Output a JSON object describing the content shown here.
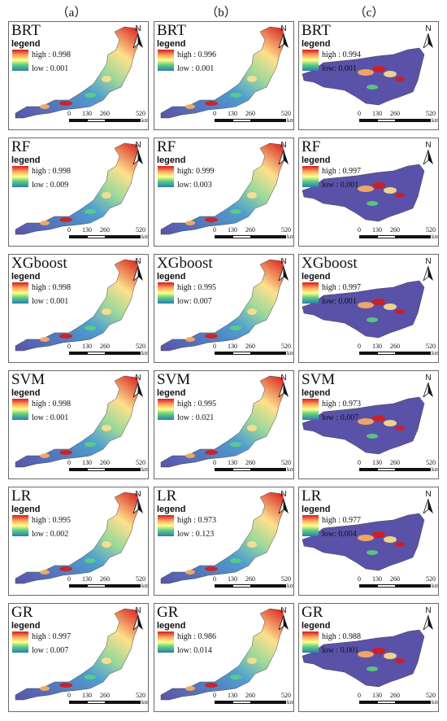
{
  "column_labels": [
    "（a）",
    "（b）",
    "（c）"
  ],
  "legend_title": "legend",
  "north_label": "N",
  "scale_labels": [
    "0",
    "130",
    "260",
    "520"
  ],
  "scale_unit": "km",
  "panels": [
    {
      "col": 0,
      "row": 0,
      "model": "BRT",
      "high": "high : 0.998",
      "low": "low : 0.001"
    },
    {
      "col": 1,
      "row": 0,
      "model": "BRT",
      "high": "high : 0.996",
      "low": "low : 0.001"
    },
    {
      "col": 2,
      "row": 0,
      "model": "BRT",
      "high": "high : 0.994",
      "low": "low: 0.001"
    },
    {
      "col": 0,
      "row": 1,
      "model": "RF",
      "high": "high : 0.998",
      "low": "low : 0.009"
    },
    {
      "col": 1,
      "row": 1,
      "model": "RF",
      "high": "high: 0.999",
      "low": "low: 0.003"
    },
    {
      "col": 2,
      "row": 1,
      "model": "RF",
      "high": "high : 0.997",
      "low": "low : 0.001"
    },
    {
      "col": 0,
      "row": 2,
      "model": "XGboost",
      "high": "high : 0.998",
      "low": "low : 0.001"
    },
    {
      "col": 1,
      "row": 2,
      "model": "XGboost",
      "high": "high : 0.995",
      "low": "low: 0.007"
    },
    {
      "col": 2,
      "row": 2,
      "model": "XGboost",
      "high": "high : 0.997",
      "low": "low: 0.001"
    },
    {
      "col": 0,
      "row": 3,
      "model": "SVM",
      "high": "high : 0.998",
      "low": "low : 0.001"
    },
    {
      "col": 1,
      "row": 3,
      "model": "SVM",
      "high": "high : 0.995",
      "low": "low : 0.021"
    },
    {
      "col": 2,
      "row": 3,
      "model": "SVM",
      "high": "high : 0.973",
      "low": "low : 0.007"
    },
    {
      "col": 0,
      "row": 4,
      "model": "LR",
      "high": "high : 0.995",
      "low": "low : 0.002"
    },
    {
      "col": 1,
      "row": 4,
      "model": "LR",
      "high": "high : 0.973",
      "low": "low : 0.123"
    },
    {
      "col": 2,
      "row": 4,
      "model": "LR",
      "high": "high : 0.977",
      "low": "low: 0.004"
    },
    {
      "col": 0,
      "row": 5,
      "model": "GR",
      "high": "high : 0.997",
      "low": "low : 0.007"
    },
    {
      "col": 1,
      "row": 5,
      "model": "GR",
      "high": "high : 0.986",
      "low": "low: 0.014"
    },
    {
      "col": 2,
      "row": 5,
      "model": "GR",
      "high": "high : 0.988",
      "low": "low : 0.001"
    }
  ],
  "colors": {
    "ramp_high": "#d7191c",
    "ramp_mid": "#ffff8c",
    "ramp_low": "#2c7bb6",
    "map_base": "#5a52a8"
  }
}
